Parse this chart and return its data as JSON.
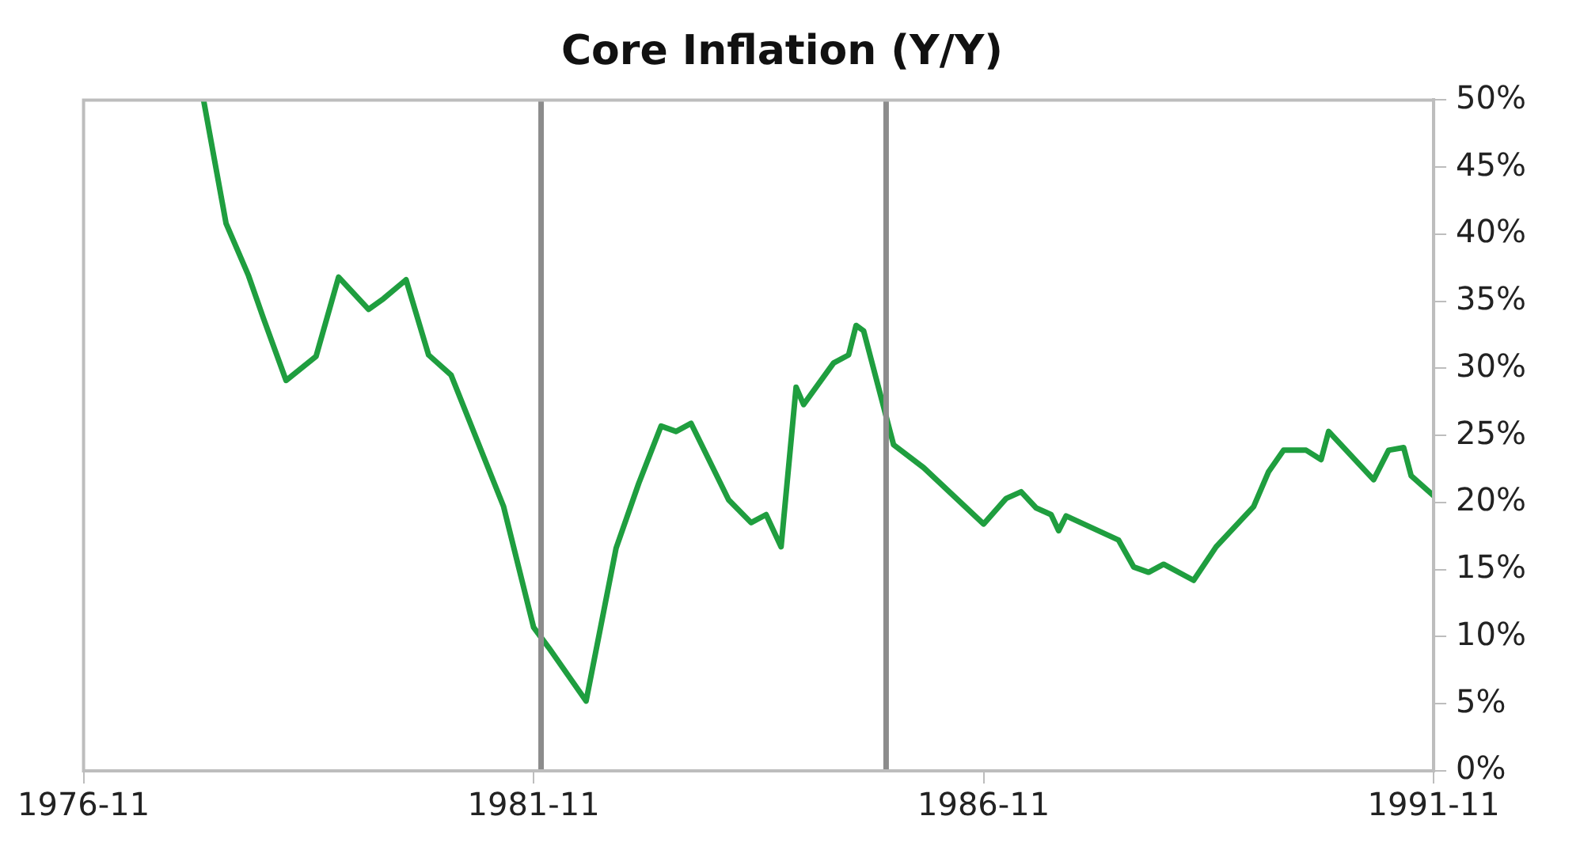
{
  "chart_data": {
    "type": "line",
    "title": "Core Inflation (Y/Y)",
    "x": [
      "1978-03",
      "1978-06",
      "1978-09",
      "1978-11",
      "1979-02",
      "1979-06",
      "1979-09",
      "1980-01",
      "1980-03",
      "1980-06",
      "1980-09",
      "1980-12",
      "1981-07",
      "1981-11",
      "1982-01",
      "1982-06",
      "1982-10",
      "1983-01",
      "1983-04",
      "1983-06",
      "1983-08",
      "1984-01",
      "1984-04",
      "1984-06",
      "1984-08",
      "1984-10",
      "1984-11",
      "1985-03",
      "1985-05",
      "1985-06",
      "1985-07",
      "1985-11",
      "1986-03",
      "1986-11",
      "1987-02",
      "1987-04",
      "1987-06",
      "1987-08",
      "1987-09",
      "1987-10",
      "1988-05",
      "1988-07",
      "1988-09",
      "1988-11",
      "1989-03",
      "1989-06",
      "1989-11",
      "1990-01",
      "1990-03",
      "1990-06",
      "1990-08",
      "1990-09",
      "1991-03",
      "1991-05",
      "1991-07",
      "1991-08",
      "1991-11"
    ],
    "series": [
      {
        "color": "#1f9e3f",
        "values": [
          50,
          40.8,
          36.9,
          33.7,
          29.1,
          30.9,
          36.8,
          34.4,
          35.2,
          36.6,
          31.0,
          29.5,
          19.7,
          10.7,
          9.2,
          5.2,
          16.6,
          21.4,
          25.7,
          25.3,
          25.9,
          20.2,
          18.5,
          19.1,
          16.7,
          28.6,
          27.3,
          30.4,
          31.0,
          33.2,
          32.8,
          24.3,
          22.6,
          18.4,
          20.3,
          20.8,
          19.6,
          19.1,
          17.9,
          19.0,
          17.2,
          15.2,
          14.8,
          15.4,
          14.2,
          16.7,
          19.7,
          22.3,
          23.9,
          23.9,
          23.2,
          25.3,
          21.7,
          23.9,
          24.1,
          22.0,
          20.5
        ]
      }
    ],
    "xlim": [
      "1976-11",
      "1991-11"
    ],
    "xticks": [
      "1976-11",
      "1981-11",
      "1986-11",
      "1991-11"
    ],
    "ylim": [
      0,
      50
    ],
    "yticks": [
      {
        "value": 0,
        "label": "0%"
      },
      {
        "value": 5,
        "label": "5%"
      },
      {
        "value": 10,
        "label": "10%"
      },
      {
        "value": 15,
        "label": "15%"
      },
      {
        "value": 20,
        "label": "20%"
      },
      {
        "value": 25,
        "label": "25%"
      },
      {
        "value": 30,
        "label": "30%"
      },
      {
        "value": 35,
        "label": "35%"
      },
      {
        "value": 40,
        "label": "40%"
      },
      {
        "value": 45,
        "label": "45%"
      },
      {
        "value": 50,
        "label": "50%"
      }
    ],
    "ref_lines": [
      {
        "axis": "x",
        "value": "1981-12",
        "color": "#8c8c8c"
      },
      {
        "axis": "x",
        "value": "1985-10",
        "color": "#8c8c8c"
      }
    ],
    "grid": false,
    "legend": false,
    "marker": "none",
    "line_style": "solid"
  }
}
